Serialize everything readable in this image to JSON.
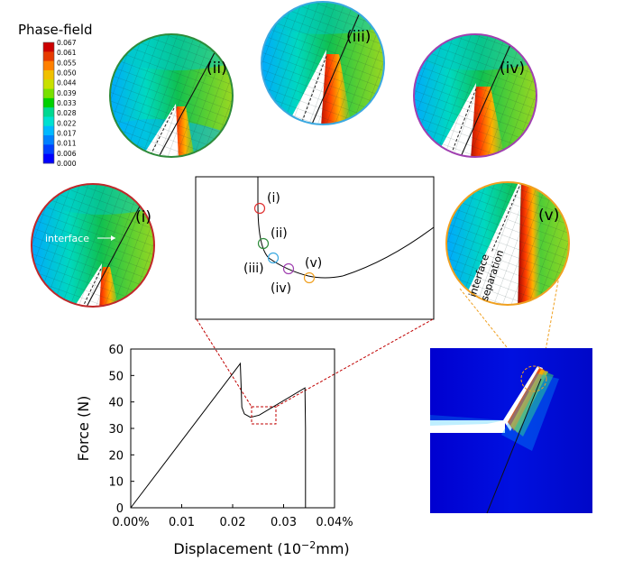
{
  "legend": {
    "title": "Phase-field",
    "ticks": [
      "0.067",
      "0.061",
      "0.055",
      "0.050",
      "0.044",
      "0.039",
      "0.033",
      "0.028",
      "0.022",
      "0.017",
      "0.011",
      "0.006",
      "0.000"
    ],
    "colors": [
      "#cc0000",
      "#e63a00",
      "#ff8000",
      "#f0c000",
      "#c8e000",
      "#78e000",
      "#00d000",
      "#00d890",
      "#00e0d0",
      "#00b8ff",
      "#0080ff",
      "#0040ff",
      "#0000ff"
    ]
  },
  "insets": {
    "i": {
      "label": "(i)",
      "ring_color": "#c0282a",
      "annotation": "interface"
    },
    "ii": {
      "label": "(ii)",
      "ring_color": "#2e8b3a"
    },
    "iii": {
      "label": "(iii)",
      "ring_color": "#3aa8e0"
    },
    "iv": {
      "label": "(iv)",
      "ring_color": "#a040b0"
    },
    "v": {
      "label": "(v)",
      "ring_color": "#f0a020",
      "annotation_line1": "interface",
      "annotation_line2": "separation"
    }
  },
  "zoom_box": {
    "markers": [
      {
        "label": "(i)",
        "color": "#e03030"
      },
      {
        "label": "(ii)",
        "color": "#2e8b3a"
      },
      {
        "label": "(iii)",
        "color": "#3aa8e0"
      },
      {
        "label": "(iv)",
        "color": "#a040b0"
      },
      {
        "label": "(v)",
        "color": "#f0a020"
      }
    ]
  },
  "chart_data": {
    "type": "line",
    "xlabel_prefix": "Displacement (10",
    "xlabel_exp": "−2",
    "xlabel_suffix": "mm)",
    "ylabel": "Force (N)",
    "xlim": [
      0,
      0.04
    ],
    "ylim": [
      0,
      60
    ],
    "xticks": [
      "0.00%",
      "0.01",
      "0.02",
      "0.03",
      "0.04%"
    ],
    "xtick_values": [
      0,
      0.01,
      0.02,
      0.03,
      0.04
    ],
    "yticks": [
      "0",
      "10",
      "20",
      "30",
      "40",
      "50",
      "60"
    ],
    "ytick_values": [
      0,
      10,
      20,
      30,
      40,
      50,
      60
    ],
    "x": [
      0,
      0.0215,
      0.0218,
      0.0223,
      0.0235,
      0.0252,
      0.0342,
      0.0343,
      0.0343
    ],
    "y": [
      0,
      54.5,
      38,
      35.5,
      34.2,
      35,
      45.3,
      30,
      0
    ],
    "grid": false
  }
}
